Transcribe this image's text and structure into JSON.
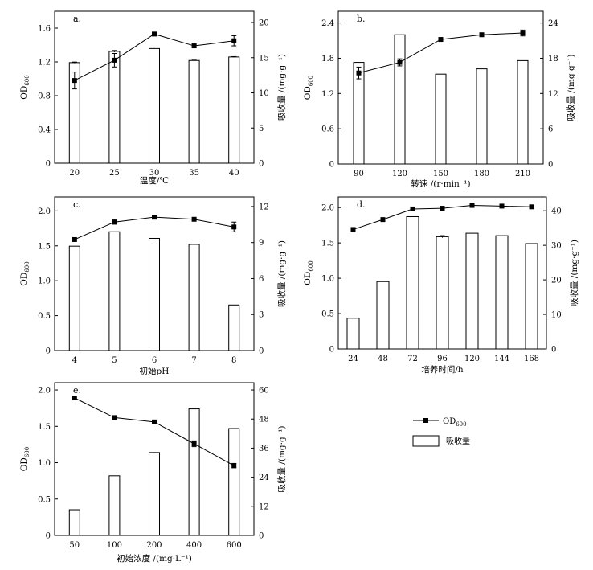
{
  "legend": {
    "od_label": "OD",
    "od_sub": "600",
    "bar_label": "吸收量"
  },
  "colors": {
    "line": "#000000",
    "bar_fill": "#ffffff",
    "bar_stroke": "#000000",
    "background": "#ffffff"
  },
  "chart_data": [
    {
      "id": "a",
      "type": "bar+line",
      "panel_label": "a.",
      "categories": [
        "20",
        "25",
        "30",
        "35",
        "40"
      ],
      "xlabel": "温度/℃",
      "left_axis": {
        "label": "OD",
        "label_sub": "600",
        "ylim": [
          0,
          1.8
        ],
        "ticks": [
          0,
          0.4,
          0.8,
          1.2,
          1.6
        ],
        "tick_labels": [
          "0",
          "0.4",
          "0.8",
          "1.2",
          "1.6"
        ]
      },
      "right_axis": {
        "label": "吸收量 /(mg·g⁻¹)",
        "ylim": [
          0,
          21.6
        ],
        "ticks": [
          0,
          5,
          10,
          15,
          20
        ],
        "tick_labels": [
          "0",
          "5",
          "10",
          "15",
          "20"
        ]
      },
      "series": [
        {
          "name": "吸收量",
          "axis": "right",
          "kind": "bar",
          "values": [
            14.3,
            15.9,
            16.3,
            14.6,
            15.1
          ],
          "errors": [
            0.08,
            0.12,
            0,
            0.05,
            0.05
          ]
        },
        {
          "name": "OD600",
          "axis": "left",
          "kind": "line",
          "values": [
            0.98,
            1.22,
            1.53,
            1.39,
            1.45
          ],
          "errors": [
            0.1,
            0.08,
            0,
            0.02,
            0.06
          ]
        }
      ]
    },
    {
      "id": "b",
      "type": "bar+line",
      "panel_label": "b.",
      "categories": [
        "90",
        "120",
        "150",
        "180",
        "210"
      ],
      "xlabel": "转速 /(r·min⁻¹)",
      "left_axis": {
        "label": "OD",
        "label_sub": "600",
        "ylim": [
          0,
          2.6
        ],
        "ticks": [
          0,
          0.6,
          1.2,
          1.8,
          2.4
        ],
        "tick_labels": [
          "0",
          "0.6",
          "1.2",
          "1.8",
          "2.4"
        ]
      },
      "right_axis": {
        "label": "吸收量 /(mg·g⁻¹)",
        "ylim": [
          0,
          26
        ],
        "ticks": [
          0,
          6,
          12,
          18,
          24
        ],
        "tick_labels": [
          "0",
          "6",
          "12",
          "18",
          "24"
        ]
      },
      "series": [
        {
          "name": "吸收量",
          "axis": "right",
          "kind": "bar",
          "values": [
            17.3,
            22.0,
            15.3,
            16.2,
            17.6
          ],
          "errors": [
            0,
            0,
            0,
            0,
            0
          ]
        },
        {
          "name": "OD600",
          "axis": "left",
          "kind": "line",
          "values": [
            1.55,
            1.73,
            2.12,
            2.2,
            2.23
          ],
          "errors": [
            0.1,
            0.06,
            0.01,
            0.02,
            0.05
          ]
        }
      ]
    },
    {
      "id": "c",
      "type": "bar+line",
      "panel_label": "c.",
      "categories": [
        "4",
        "5",
        "6",
        "7",
        "8"
      ],
      "xlabel": "初始pH",
      "left_axis": {
        "label": "OD",
        "label_sub": "600",
        "ylim": [
          0,
          2.2
        ],
        "ticks": [
          0,
          0.5,
          1.0,
          1.5,
          2.0
        ],
        "tick_labels": [
          "0",
          "0.5",
          "1.0",
          "1.5",
          "2.0"
        ]
      },
      "right_axis": {
        "label": "吸收量 /(mg·g⁻¹)",
        "ylim": [
          0,
          12.8
        ],
        "ticks": [
          0,
          3,
          6,
          9,
          12
        ],
        "tick_labels": [
          "0",
          "3",
          "6",
          "9",
          "12"
        ]
      },
      "series": [
        {
          "name": "吸收量",
          "axis": "right",
          "kind": "bar",
          "values": [
            8.7,
            9.9,
            9.35,
            8.85,
            3.8
          ],
          "errors": [
            0,
            0,
            0,
            0,
            0
          ]
        },
        {
          "name": "OD600",
          "axis": "left",
          "kind": "line",
          "values": [
            1.59,
            1.84,
            1.91,
            1.88,
            1.77
          ],
          "errors": [
            0.01,
            0.03,
            0.02,
            0.01,
            0.07
          ]
        }
      ]
    },
    {
      "id": "d",
      "type": "bar+line",
      "panel_label": "d.",
      "categories": [
        "24",
        "48",
        "72",
        "96",
        "120",
        "144",
        "168"
      ],
      "xlabel": "培养时间/h",
      "left_axis": {
        "label": "OD",
        "label_sub": "600",
        "ylim": [
          0,
          2.15
        ],
        "ticks": [
          0,
          0.5,
          1.0,
          1.5,
          2.0
        ],
        "tick_labels": [
          "0",
          "0.5",
          "1.0",
          "1.5",
          "2.0"
        ]
      },
      "right_axis": {
        "label": "吸收量 /(mg·g⁻¹)",
        "ylim": [
          0,
          44
        ],
        "ticks": [
          0,
          10,
          20,
          30,
          40
        ],
        "tick_labels": [
          "0",
          "10",
          "20",
          "30",
          "40"
        ]
      },
      "series": [
        {
          "name": "吸收量",
          "axis": "right",
          "kind": "bar",
          "values": [
            8.9,
            19.5,
            38.3,
            32.5,
            33.5,
            32.8,
            30.5
          ],
          "errors": [
            0,
            0,
            0,
            0.3,
            0,
            0,
            0
          ]
        },
        {
          "name": "OD600",
          "axis": "left",
          "kind": "line",
          "values": [
            1.69,
            1.83,
            1.98,
            1.99,
            2.03,
            2.02,
            2.01
          ],
          "errors": [
            0,
            0,
            0,
            0,
            0,
            0,
            0
          ]
        }
      ]
    },
    {
      "id": "e",
      "type": "bar+line",
      "panel_label": "e.",
      "categories": [
        "50",
        "100",
        "200",
        "400",
        "600"
      ],
      "xlabel": "初始浓度 /(mg·L⁻¹)",
      "left_axis": {
        "label": "OD",
        "label_sub": "600",
        "ylim": [
          0,
          2.1
        ],
        "ticks": [
          0,
          0.5,
          1.0,
          1.5,
          2.0
        ],
        "tick_labels": [
          "0",
          "0.5",
          "1.0",
          "1.5",
          "2.0"
        ]
      },
      "right_axis": {
        "label": "吸收量 /(mg·g⁻¹)",
        "ylim": [
          0,
          63
        ],
        "ticks": [
          0,
          12,
          24,
          36,
          48,
          60
        ],
        "tick_labels": [
          "0",
          "12",
          "24",
          "36",
          "48",
          "60"
        ]
      },
      "series": [
        {
          "name": "吸收量",
          "axis": "right",
          "kind": "bar",
          "values": [
            10.6,
            24.6,
            34.2,
            52.2,
            44.1
          ],
          "errors": [
            0,
            0,
            0,
            0,
            0
          ]
        },
        {
          "name": "OD600",
          "axis": "left",
          "kind": "line",
          "values": [
            1.89,
            1.62,
            1.56,
            1.26,
            0.96
          ],
          "errors": [
            0,
            0,
            0,
            0.04,
            0.03
          ]
        }
      ]
    }
  ]
}
